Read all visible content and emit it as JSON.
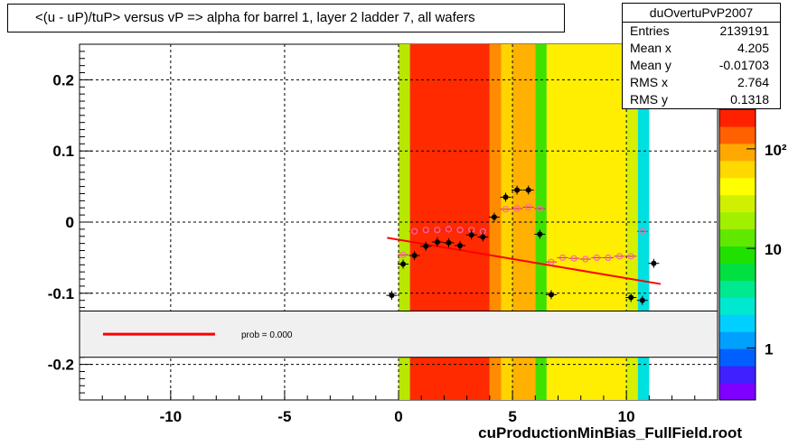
{
  "title": "<(u - uP)/tuP> versus   vP => alpha for barrel 1, layer 2 ladder 7, all wafers",
  "stats": {
    "name": "duOvertuPvP2007",
    "rows": [
      {
        "label": "Entries",
        "value": "2139191"
      },
      {
        "label": "Mean x",
        "value": "4.205"
      },
      {
        "label": "Mean y",
        "value": "-0.01703"
      },
      {
        "label": "RMS x",
        "value": "2.764"
      },
      {
        "label": "RMS y",
        "value": "0.1318"
      }
    ]
  },
  "legend": {
    "fit_label": "prob = 0.000",
    "fit_color": "#ff0000"
  },
  "footer": "cuProductionMinBias_FullField.root",
  "colors": {
    "fit": "#ff0000",
    "profile_points": "#000000",
    "profile_markers": "#ff66aa",
    "legend_bg": "#f0f0f0"
  },
  "chart_data": {
    "type": "heatmap",
    "title": "<(u - uP)/tuP> versus   vP => alpha for barrel 1, layer 2 ladder 7, all wafers",
    "xlim": [
      -14,
      14
    ],
    "ylim": [
      -0.25,
      0.25
    ],
    "x_ticks": [
      -10,
      -5,
      0,
      5,
      10
    ],
    "y_ticks": [
      -0.2,
      -0.1,
      0,
      0.1,
      0.2
    ],
    "grid": true,
    "colorbar": {
      "scale": "log",
      "tick_labels": [
        "1",
        "10",
        "10²"
      ],
      "range": [
        0.3,
        250
      ]
    },
    "heatmap_columns": [
      {
        "x0": 0.0,
        "x1": 0.5,
        "color": "#b8e800"
      },
      {
        "x0": 0.5,
        "x1": 4.0,
        "color": "#ff2a00"
      },
      {
        "x0": 4.0,
        "x1": 4.5,
        "color": "#ff8c00"
      },
      {
        "x0": 4.5,
        "x1": 5.0,
        "color": "#ffd400"
      },
      {
        "x0": 5.0,
        "x1": 6.0,
        "color": "#ffb000"
      },
      {
        "x0": 6.0,
        "x1": 6.5,
        "color": "#40e000"
      },
      {
        "x0": 6.5,
        "x1": 10.0,
        "color": "#ffee00"
      },
      {
        "x0": 10.0,
        "x1": 10.5,
        "color": "#d8f000"
      },
      {
        "x0": 10.5,
        "x1": 11.0,
        "color": "#00e0e0"
      }
    ],
    "profile_black": [
      {
        "x": -0.3,
        "y": -0.103
      },
      {
        "x": 0.2,
        "y": -0.059
      },
      {
        "x": 0.7,
        "y": -0.047
      },
      {
        "x": 1.2,
        "y": -0.034
      },
      {
        "x": 1.7,
        "y": -0.028
      },
      {
        "x": 2.2,
        "y": -0.029
      },
      {
        "x": 2.7,
        "y": -0.033
      },
      {
        "x": 3.2,
        "y": -0.018
      },
      {
        "x": 3.7,
        "y": -0.021
      },
      {
        "x": 4.2,
        "y": 0.007
      },
      {
        "x": 4.7,
        "y": 0.035
      },
      {
        "x": 5.2,
        "y": 0.045
      },
      {
        "x": 5.7,
        "y": 0.045
      },
      {
        "x": 6.2,
        "y": -0.017
      },
      {
        "x": 6.7,
        "y": -0.102
      },
      {
        "x": 10.2,
        "y": -0.106
      },
      {
        "x": 10.7,
        "y": -0.11
      },
      {
        "x": 11.2,
        "y": -0.058
      }
    ],
    "profile_markers": [
      {
        "x": 0.2,
        "y": -0.046
      },
      {
        "x": 0.7,
        "y": -0.013
      },
      {
        "x": 1.2,
        "y": -0.011
      },
      {
        "x": 1.7,
        "y": -0.011
      },
      {
        "x": 2.2,
        "y": -0.01
      },
      {
        "x": 2.7,
        "y": -0.011
      },
      {
        "x": 3.2,
        "y": -0.011
      },
      {
        "x": 3.7,
        "y": -0.013
      },
      {
        "x": 4.7,
        "y": 0.018
      },
      {
        "x": 5.2,
        "y": 0.019
      },
      {
        "x": 5.7,
        "y": 0.021
      },
      {
        "x": 6.2,
        "y": 0.019
      },
      {
        "x": 6.7,
        "y": -0.056
      },
      {
        "x": 7.2,
        "y": -0.05
      },
      {
        "x": 7.7,
        "y": -0.051
      },
      {
        "x": 8.2,
        "y": -0.052
      },
      {
        "x": 8.7,
        "y": -0.05
      },
      {
        "x": 9.2,
        "y": -0.05
      },
      {
        "x": 9.7,
        "y": -0.048
      },
      {
        "x": 10.2,
        "y": -0.048
      },
      {
        "x": 10.7,
        "y": -0.013
      }
    ],
    "fit_line": {
      "x": [
        -0.5,
        11.5
      ],
      "y": [
        -0.022,
        -0.087
      ]
    },
    "legend_band": {
      "y0": -0.19,
      "y1": -0.125
    }
  }
}
